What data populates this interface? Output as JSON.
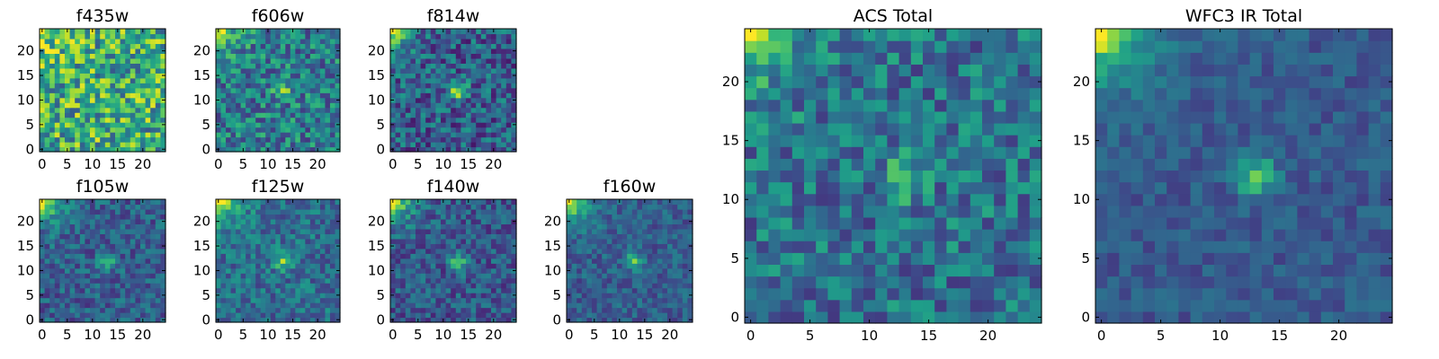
{
  "chart_data": [
    {
      "type": "heatmap",
      "title": "f435w",
      "x_ticks": [
        "0",
        "5",
        "10",
        "15",
        "20"
      ],
      "y_ticks": [
        "0",
        "5",
        "10",
        "15",
        "20"
      ],
      "xlim": [
        0,
        25
      ],
      "ylim": [
        0,
        25
      ],
      "grid_size": 25,
      "bright_corner": [
        0,
        24
      ],
      "corner_strength": 0.35,
      "source_center": [
        13,
        12
      ],
      "source_strength": 0.05,
      "background": 0.62,
      "noise": 0.34,
      "seed": 11
    },
    {
      "type": "heatmap",
      "title": "f606w",
      "x_ticks": [
        "0",
        "5",
        "10",
        "15",
        "20"
      ],
      "y_ticks": [
        "0",
        "5",
        "10",
        "15",
        "20"
      ],
      "xlim": [
        0,
        25
      ],
      "ylim": [
        0,
        25
      ],
      "grid_size": 25,
      "bright_corner": [
        0,
        24
      ],
      "corner_strength": 0.55,
      "source_center": [
        13,
        12
      ],
      "source_strength": 0.35,
      "background": 0.42,
      "noise": 0.26,
      "seed": 23
    },
    {
      "type": "heatmap",
      "title": "f814w",
      "x_ticks": [
        "0",
        "5",
        "10",
        "15",
        "20"
      ],
      "y_ticks": [
        "0",
        "5",
        "10",
        "15",
        "20"
      ],
      "xlim": [
        0,
        25
      ],
      "ylim": [
        0,
        25
      ],
      "grid_size": 25,
      "bright_corner": [
        0,
        24
      ],
      "corner_strength": 0.7,
      "source_center": [
        13,
        12
      ],
      "source_strength": 0.55,
      "background": 0.3,
      "noise": 0.24,
      "seed": 37
    },
    {
      "type": "heatmap",
      "title": "f105w",
      "x_ticks": [
        "0",
        "5",
        "10",
        "15",
        "20"
      ],
      "y_ticks": [
        "0",
        "5",
        "10",
        "15",
        "20"
      ],
      "xlim": [
        0,
        25
      ],
      "ylim": [
        0,
        25
      ],
      "grid_size": 25,
      "bright_corner": [
        0,
        24
      ],
      "corner_strength": 0.85,
      "source_center": [
        13,
        12
      ],
      "source_strength": 0.35,
      "background": 0.3,
      "noise": 0.17,
      "seed": 41
    },
    {
      "type": "heatmap",
      "title": "f125w",
      "x_ticks": [
        "0",
        "5",
        "10",
        "15",
        "20"
      ],
      "y_ticks": [
        "0",
        "5",
        "10",
        "15",
        "20"
      ],
      "xlim": [
        0,
        25
      ],
      "ylim": [
        0,
        25
      ],
      "grid_size": 25,
      "bright_corner": [
        0,
        24
      ],
      "corner_strength": 0.85,
      "source_center": [
        13,
        12
      ],
      "source_strength": 0.4,
      "background": 0.36,
      "noise": 0.18,
      "seed": 53
    },
    {
      "type": "heatmap",
      "title": "f140w",
      "x_ticks": [
        "0",
        "5",
        "10",
        "15",
        "20"
      ],
      "y_ticks": [
        "0",
        "5",
        "10",
        "15",
        "20"
      ],
      "xlim": [
        0,
        25
      ],
      "ylim": [
        0,
        25
      ],
      "grid_size": 25,
      "bright_corner": [
        0,
        24
      ],
      "corner_strength": 0.85,
      "source_center": [
        13,
        12
      ],
      "source_strength": 0.4,
      "background": 0.28,
      "noise": 0.18,
      "seed": 67
    },
    {
      "type": "heatmap",
      "title": "f160w",
      "x_ticks": [
        "0",
        "5",
        "10",
        "15",
        "20"
      ],
      "y_ticks": [
        "0",
        "5",
        "10",
        "15",
        "20"
      ],
      "xlim": [
        0,
        25
      ],
      "ylim": [
        0,
        25
      ],
      "grid_size": 25,
      "bright_corner": [
        0,
        24
      ],
      "corner_strength": 0.85,
      "source_center": [
        13,
        12
      ],
      "source_strength": 0.4,
      "background": 0.3,
      "noise": 0.14,
      "seed": 79
    },
    {
      "type": "heatmap",
      "title": "ACS Total",
      "x_ticks": [
        "0",
        "5",
        "10",
        "15",
        "20"
      ],
      "y_ticks": [
        "0",
        "5",
        "10",
        "15",
        "20"
      ],
      "xlim": [
        0,
        25
      ],
      "ylim": [
        0,
        25
      ],
      "grid_size": 25,
      "bright_corner": [
        0,
        24
      ],
      "corner_strength": 0.6,
      "source_center": [
        13,
        12
      ],
      "source_strength": 0.35,
      "background": 0.38,
      "noise": 0.22,
      "seed": 91
    },
    {
      "type": "heatmap",
      "title": "WFC3 IR Total",
      "x_ticks": [
        "0",
        "5",
        "10",
        "15",
        "20"
      ],
      "y_ticks": [
        "0",
        "5",
        "10",
        "15",
        "20"
      ],
      "xlim": [
        0,
        25
      ],
      "ylim": [
        0,
        25
      ],
      "grid_size": 25,
      "bright_corner": [
        0,
        24
      ],
      "corner_strength": 0.85,
      "source_center": [
        13,
        12
      ],
      "source_strength": 0.42,
      "background": 0.28,
      "noise": 0.1,
      "seed": 103
    }
  ],
  "colormap": [
    "#440154",
    "#482878",
    "#3e4989",
    "#31688e",
    "#26828e",
    "#1f9e89",
    "#35b779",
    "#6ece58",
    "#b5de2b",
    "#fde725"
  ]
}
